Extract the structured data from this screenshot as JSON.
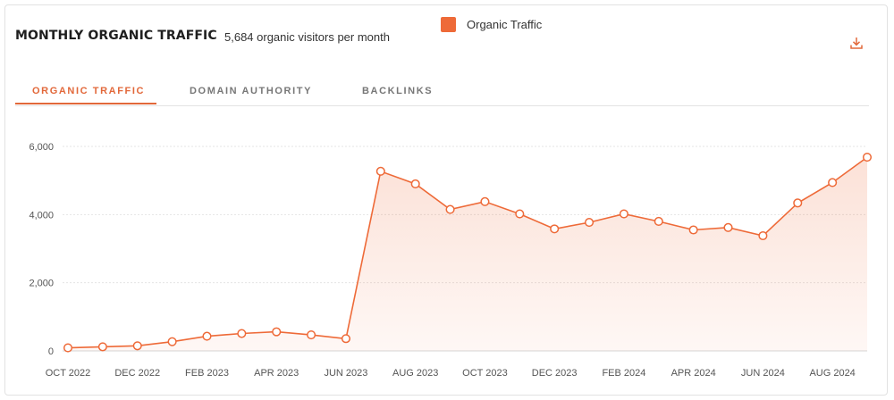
{
  "header": {
    "title": "MONTHLY ORGANIC TRAFFIC",
    "subtitle": "5,684 organic visitors per month",
    "download_icon": "download-icon"
  },
  "tabs": [
    {
      "label": "ORGANIC TRAFFIC",
      "active": true
    },
    {
      "label": "DOMAIN AUTHORITY",
      "active": false
    },
    {
      "label": "BACKLINKS",
      "active": false
    }
  ],
  "legend": {
    "label": "Organic Traffic",
    "color": "#ee6a38"
  },
  "chart_data": {
    "type": "area",
    "title": "",
    "xlabel": "",
    "ylabel": "",
    "ylim": [
      0,
      6000
    ],
    "yticks": [
      0,
      2000,
      4000,
      6000
    ],
    "ytick_labels": [
      "0",
      "2,000",
      "4,000",
      "6,000"
    ],
    "grid": true,
    "legend_position": "top",
    "x": [
      "2022-10",
      "2022-11",
      "2022-12",
      "2023-01",
      "2023-02",
      "2023-03",
      "2023-04",
      "2023-05",
      "2023-06",
      "2023-07",
      "2023-08",
      "2023-09",
      "2023-10",
      "2023-11",
      "2023-12",
      "2024-01",
      "2024-02",
      "2024-03",
      "2024-04",
      "2024-05",
      "2024-06",
      "2024-07",
      "2024-08",
      "2024-09"
    ],
    "xtick_labels": [
      "OCT 2022",
      "DEC 2022",
      "FEB 2023",
      "APR 2023",
      "JUN 2023",
      "AUG 2023",
      "OCT 2023",
      "DEC 2023",
      "FEB 2024",
      "APR 2024",
      "JUN 2024",
      "AUG 2024"
    ],
    "series": [
      {
        "name": "Organic Traffic",
        "color": "#ee6a38",
        "values": [
          90,
          120,
          150,
          270,
          430,
          510,
          560,
          470,
          360,
          5270,
          4900,
          4150,
          4380,
          4020,
          3580,
          3770,
          4020,
          3800,
          3550,
          3620,
          3380,
          4340,
          4940,
          5684
        ]
      }
    ]
  }
}
